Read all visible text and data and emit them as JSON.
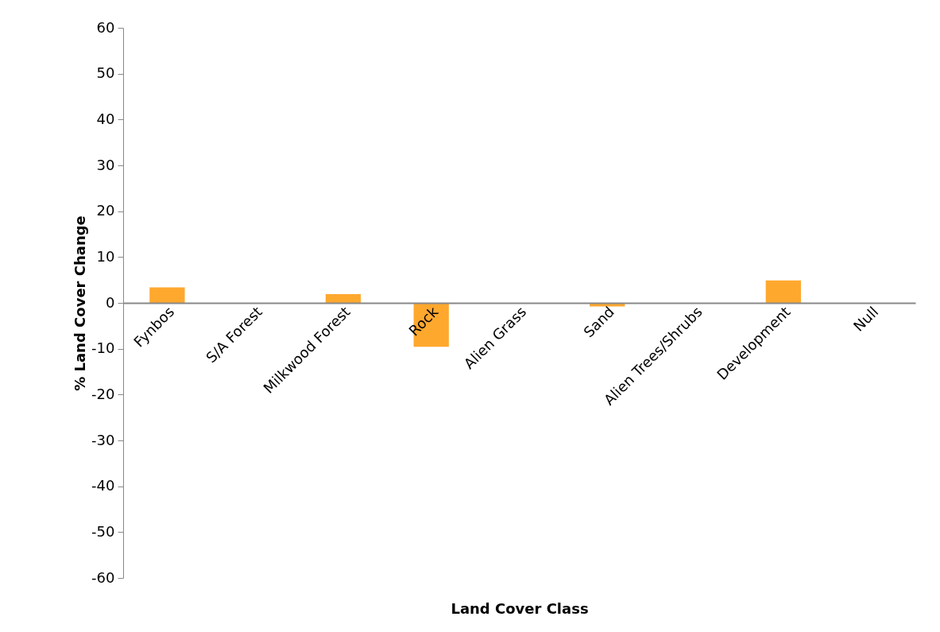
{
  "chart_data": {
    "type": "bar",
    "xlabel": "Land Cover Class",
    "ylabel": "% Land Cover Change",
    "categories": [
      "Fynbos",
      "S/A Forest",
      "Milkwood Forest",
      "Rock",
      "Alien Grass",
      "Sand",
      "Alien Trees/Shrubs",
      "Development",
      "Null"
    ],
    "values": [
      3.4,
      0,
      1.9,
      -9.6,
      0,
      -0.8,
      0,
      4.9,
      0
    ],
    "color": "#ffa82e",
    "ylim": [
      -60,
      60
    ],
    "yticks": [
      -60,
      -50,
      -40,
      -30,
      -20,
      -10,
      0,
      10,
      20,
      30,
      40,
      50,
      60
    ],
    "grid": false
  }
}
